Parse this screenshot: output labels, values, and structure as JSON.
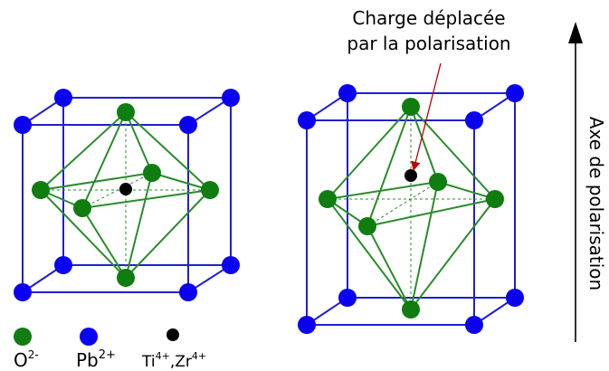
{
  "annotation": {
    "line1": "Charge déplacée",
    "line2": "par la polarisation"
  },
  "axis_label": "Axe de polarisation",
  "legend": {
    "oxygen": {
      "base": "O",
      "sup": "2-"
    },
    "lead": {
      "base": "Pb",
      "sup": "2+"
    },
    "titanium": {
      "t1": "Ti",
      "s1": "4+",
      "t2": ",Zr",
      "s2": "4+"
    }
  },
  "colors": {
    "lead": "#0b00f0",
    "oxygen": "#0f7d0f",
    "cell_edges": "#1f1fd0",
    "octahedron": "#2a8c2a",
    "arrow": "#c00000",
    "center_atom": "#000000"
  }
}
